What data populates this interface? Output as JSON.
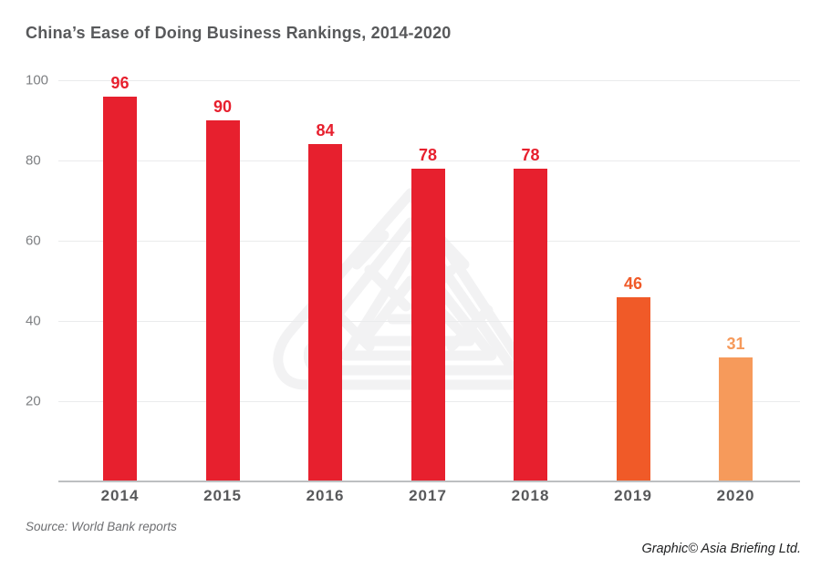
{
  "header": {
    "title": "China’s Ease of Doing Business Rankings, 2014-2020"
  },
  "chart_data": {
    "type": "bar",
    "title": "China’s Ease of Doing Business Rankings, 2014-2020",
    "categories": [
      "2014",
      "2015",
      "2016",
      "2017",
      "2018",
      "2019",
      "2020"
    ],
    "values": [
      96,
      90,
      84,
      78,
      78,
      46,
      31
    ],
    "bar_colors": [
      "#E7202E",
      "#E7202E",
      "#E7202E",
      "#E7202E",
      "#E7202E",
      "#F05A28",
      "#F69A5B"
    ],
    "value_label_colors": [
      "#E7202E",
      "#E7202E",
      "#E7202E",
      "#E7202E",
      "#E7202E",
      "#F05A28",
      "#F69A5B"
    ],
    "xlabel": "",
    "ylabel": "",
    "ylim": [
      0,
      100
    ],
    "yticks": [
      20,
      40,
      60,
      80,
      100
    ],
    "grid": "horizontal-light",
    "legend": "none",
    "value_labels_position": "above-bars"
  },
  "footer": {
    "source": "Source: World Bank reports",
    "credit": "Graphic© Asia Briefing Ltd."
  },
  "style": {
    "title_color": "#58595B",
    "axis_label_color": "#7D7F82",
    "year_label_color": "#58595B",
    "gridline_color": "#EAEBEC",
    "baseline_color": "#BDBFC1",
    "watermark_color": "#F2F2F3",
    "background": "#FFFFFF"
  }
}
